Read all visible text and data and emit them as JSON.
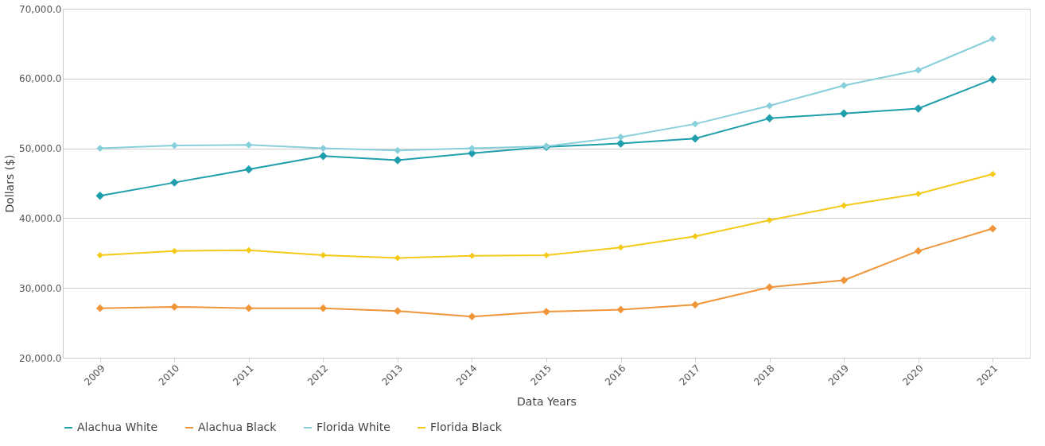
{
  "chart_data": {
    "type": "line",
    "xlabel": "Data Years",
    "ylabel": "Dollars ($)",
    "categories": [
      "2009",
      "2010",
      "2011",
      "2012",
      "2013",
      "2014",
      "2015",
      "2016",
      "2017",
      "2018",
      "2019",
      "2020",
      "2021"
    ],
    "series": [
      {
        "name": "Alachua White",
        "color": "#1f9eab",
        "values": [
          43200,
          45100,
          47000,
          48900,
          48300,
          49300,
          50200,
          50700,
          51400,
          54300,
          55000,
          55700,
          59900
        ]
      },
      {
        "name": "Alachua Black",
        "color": "#f0953a",
        "values": [
          27100,
          27300,
          27100,
          27100,
          26700,
          25900,
          26600,
          26900,
          27600,
          30100,
          31100,
          35300,
          38500
        ]
      },
      {
        "name": "Florida White",
        "color": "#88cfdc",
        "values": [
          50000,
          50400,
          50500,
          50000,
          49700,
          50000,
          50300,
          51600,
          53500,
          56100,
          59000,
          61200,
          65700
        ]
      },
      {
        "name": "Florida Black",
        "color": "#f5c918",
        "values": [
          34700,
          35300,
          35400,
          34700,
          34300,
          34600,
          34700,
          35800,
          37400,
          39700,
          41800,
          43500,
          46300
        ]
      }
    ],
    "ylim": [
      20000,
      70000
    ],
    "yticks": [
      {
        "value": 20000,
        "label": "20,000.0"
      },
      {
        "value": 30000,
        "label": "30,000.0"
      },
      {
        "value": 40000,
        "label": "40,000.0"
      },
      {
        "value": 50000,
        "label": "50,000.0"
      },
      {
        "value": 60000,
        "label": "60,000.0"
      },
      {
        "value": 70000,
        "label": "70,000.0"
      }
    ],
    "grid": "y",
    "legend": "bottom",
    "marker": "diamond",
    "line_style": "solid"
  }
}
